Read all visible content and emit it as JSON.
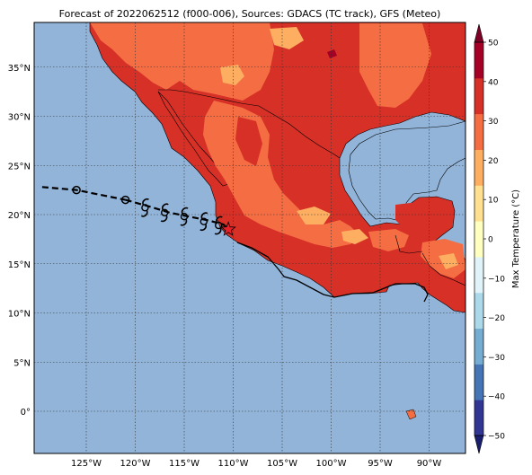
{
  "title": "Forecast of 2022062512 (f000-006), Sources: GDACS (TC track), GFS (Meteo)",
  "lat_labels": [
    "35°N",
    "30°N",
    "25°N",
    "20°N",
    "15°N",
    "10°N",
    "5°N",
    "0°"
  ],
  "lat_values": [
    35,
    30,
    25,
    20,
    15,
    10,
    5,
    0
  ],
  "lon_labels": [
    "125°W",
    "120°W",
    "115°W",
    "110°W",
    "105°W",
    "100°W",
    "95°W",
    "90°W"
  ],
  "lon_values": [
    -125,
    -120,
    -115,
    -110,
    -105,
    -100,
    -95,
    -90
  ],
  "colorbar": {
    "label": "Max Temperature (°C)",
    "tick_labels": [
      "50",
      "40",
      "30",
      "20",
      "10",
      "0",
      "−10",
      "−20",
      "−30",
      "−40",
      "−50"
    ],
    "colors": [
      "#313695",
      "#4575b4",
      "#74add1",
      "#abd9e9",
      "#e0f3f8",
      "#ffffbf",
      "#fee090",
      "#fdae61",
      "#f46d43",
      "#d73027",
      "#a50026"
    ]
  },
  "colors": {
    "ocean": "#92b4d9",
    "land_hot": "#d73027",
    "land_warm": "#f46d43",
    "land_mild": "#fdae61",
    "grid": "#333333"
  },
  "track": {
    "past_points": [
      [
        -129.5,
        22.8
      ],
      [
        -126,
        22.5
      ],
      [
        -121,
        21.5
      ]
    ],
    "forecast_points": [
      [
        -121,
        21.5
      ],
      [
        -118.5,
        20.8
      ],
      [
        -116.5,
        20.2
      ],
      [
        -114.5,
        19.8
      ],
      [
        -112.5,
        19.4
      ],
      [
        -111,
        19.0
      ],
      [
        -110.5,
        18.5
      ]
    ],
    "storm_symbols": [
      [
        -119,
        20.7
      ],
      [
        -117,
        20.2
      ],
      [
        -115,
        19.8
      ],
      [
        -113,
        19.3
      ],
      [
        -111.5,
        18.9
      ]
    ],
    "current_position": [
      -110.5,
      18.5
    ]
  }
}
